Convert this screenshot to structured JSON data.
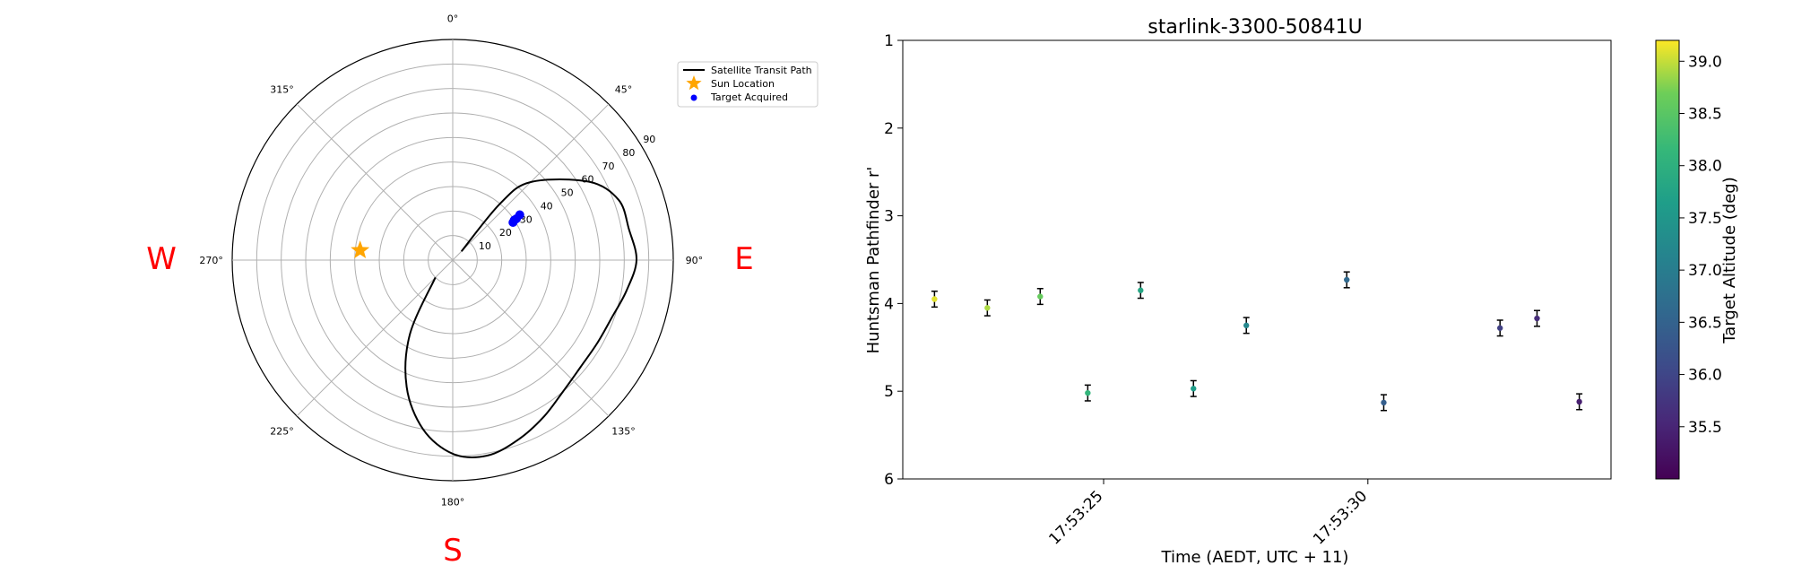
{
  "polar": {
    "cardinals": {
      "west": "W",
      "east": "E",
      "south": "S"
    },
    "azimuth_ticks": [
      "0°",
      "45°",
      "90°",
      "135°",
      "180°",
      "225°",
      "270°",
      "315°"
    ],
    "radial_ticks": [
      "10",
      "20",
      "30",
      "40",
      "50",
      "60",
      "70",
      "80",
      "90"
    ],
    "legend": {
      "transit": "Satellite Transit Path",
      "sun": "Sun Location",
      "target": "Target Acquired"
    },
    "colors": {
      "transit": "#000000",
      "sun": "#ffa500",
      "target": "#0000ff"
    }
  },
  "chart_data": [
    {
      "type": "line",
      "projection": "polar (alt-az sky plot, zenith at centre, north up, east right)",
      "series": [
        {
          "name": "Satellite Transit Path",
          "points_az_zenithdist": [
            [
              225,
              10
            ],
            [
              210,
              35
            ],
            [
              200,
              55
            ],
            [
              190,
              70
            ],
            [
              180,
              79
            ],
            [
              170,
              81
            ],
            [
              160,
              78
            ],
            [
              150,
              74
            ],
            [
              140,
              70
            ],
            [
              130,
              68
            ],
            [
              120,
              68
            ],
            [
              110,
              69
            ],
            [
              100,
              72
            ],
            [
              90,
              75
            ],
            [
              80,
              73
            ],
            [
              70,
              72
            ],
            [
              60,
              64
            ],
            [
              45,
              45
            ],
            [
              40,
              30
            ],
            [
              45,
              5
            ]
          ]
        },
        {
          "name": "Sun Location",
          "points_az_zenithdist": [
            [
              276,
              38
            ]
          ]
        },
        {
          "name": "Target Acquired",
          "points_az_zenithdist": [
            [
              56,
              33
            ],
            [
              57,
              31
            ],
            [
              57,
              30
            ],
            [
              58,
              29
            ]
          ]
        }
      ],
      "radial_range": [
        0,
        90
      ],
      "legend_position": "top-right"
    },
    {
      "type": "scatter",
      "title": "starlink-3300-50841U",
      "xlabel": "Time (AEDT, UTC + 11)",
      "ylabel": "Huntsman Pathfinder r'",
      "x_tick_labels": [
        "17:53:25",
        "17:53:30"
      ],
      "x_tick_seconds": [
        25,
        30
      ],
      "xlim_seconds": [
        21.2,
        34.6
      ],
      "ylim": [
        6,
        1
      ],
      "y_ticks": [
        1,
        2,
        3,
        4,
        5,
        6
      ],
      "y_inverted": true,
      "colorbar": {
        "label": "Target Altitude (deg)",
        "range": [
          35.0,
          39.2
        ],
        "ticks": [
          "35.5",
          "36.0",
          "36.5",
          "37.0",
          "37.5",
          "38.0",
          "38.5",
          "39.0"
        ],
        "tick_values": [
          35.5,
          36.0,
          36.5,
          37.0,
          37.5,
          38.0,
          38.5,
          39.0
        ],
        "colormap": "viridis"
      },
      "points": [
        {
          "t": 21.8,
          "mag": 3.95,
          "err": 0.09,
          "alt": 39.1
        },
        {
          "t": 22.8,
          "mag": 4.05,
          "err": 0.09,
          "alt": 38.9
        },
        {
          "t": 23.8,
          "mag": 3.92,
          "err": 0.09,
          "alt": 38.6
        },
        {
          "t": 24.7,
          "mag": 5.02,
          "err": 0.09,
          "alt": 38.1
        },
        {
          "t": 25.7,
          "mag": 3.85,
          "err": 0.09,
          "alt": 37.8
        },
        {
          "t": 26.7,
          "mag": 4.97,
          "err": 0.09,
          "alt": 37.6
        },
        {
          "t": 27.7,
          "mag": 4.25,
          "err": 0.09,
          "alt": 37.2
        },
        {
          "t": 29.6,
          "mag": 3.73,
          "err": 0.09,
          "alt": 36.6
        },
        {
          "t": 30.3,
          "mag": 5.13,
          "err": 0.09,
          "alt": 36.4
        },
        {
          "t": 32.5,
          "mag": 4.28,
          "err": 0.09,
          "alt": 35.9
        },
        {
          "t": 33.2,
          "mag": 4.17,
          "err": 0.09,
          "alt": 35.6
        },
        {
          "t": 34.0,
          "mag": 5.12,
          "err": 0.09,
          "alt": 35.4
        }
      ]
    }
  ]
}
